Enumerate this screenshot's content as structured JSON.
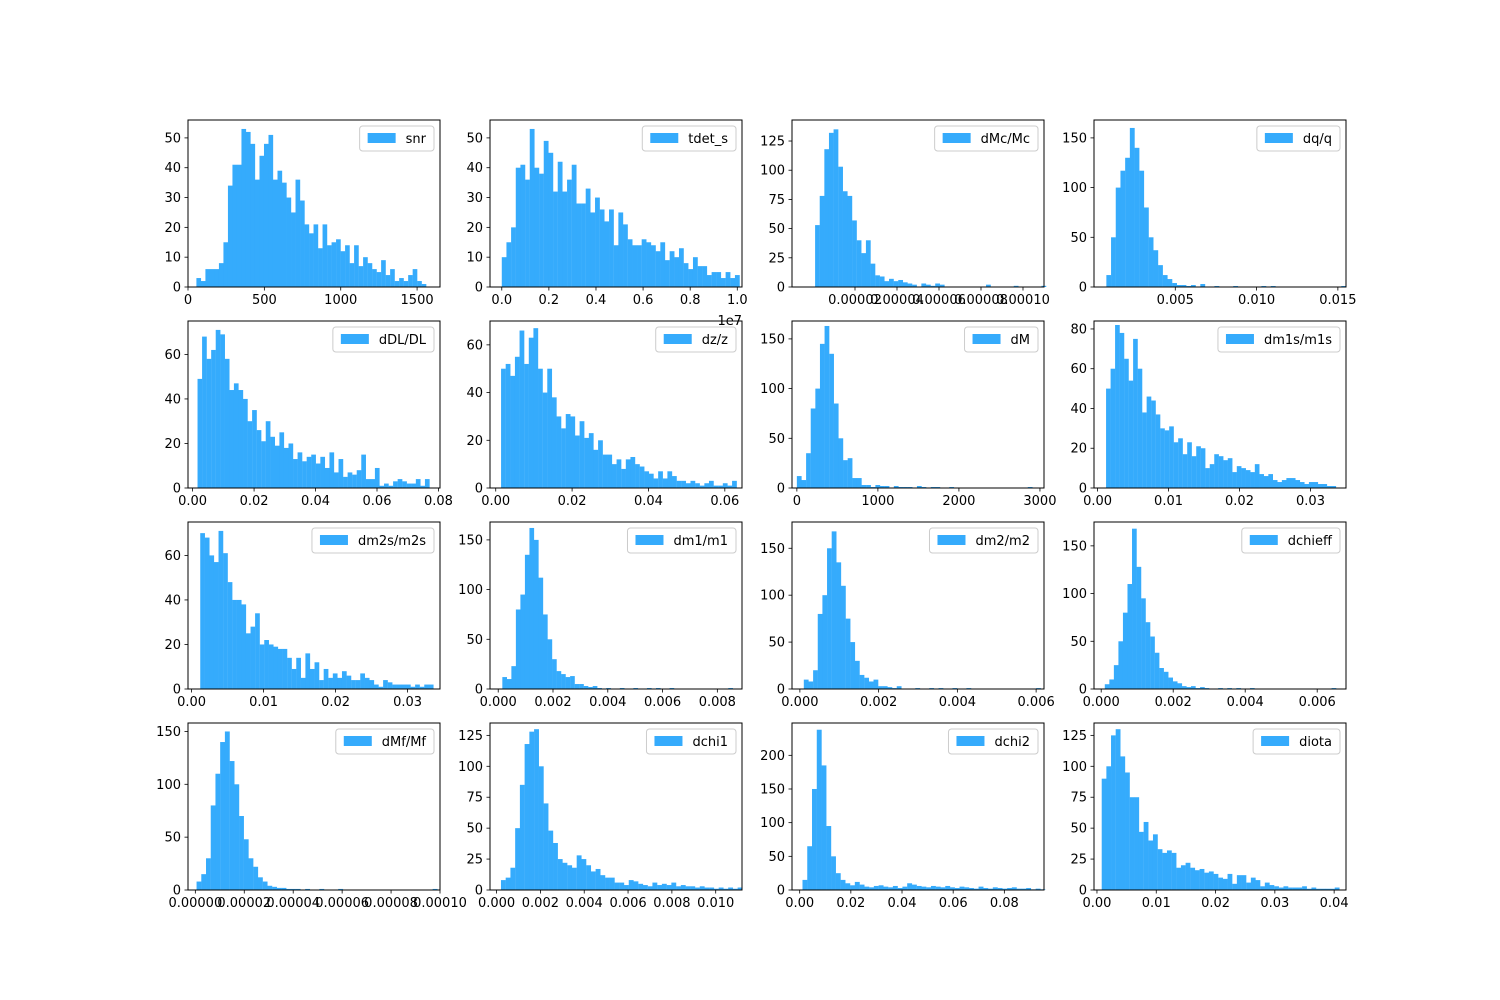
{
  "colors": {
    "bar": "#35abfc",
    "axis": "#000000",
    "background": "#ffffff",
    "legend_edge": "#cccccc"
  },
  "chart_data": [
    {
      "type": "bar",
      "legend": "snr",
      "legend_loc": "upper right",
      "xlim": [
        0,
        1650
      ],
      "ylim": [
        0,
        56
      ],
      "xticks": [
        0,
        500,
        1000,
        1500
      ],
      "xtick_labels": [
        "0",
        "500",
        "1000",
        "1500"
      ],
      "yticks": [
        0,
        10,
        20,
        30,
        40,
        50
      ],
      "ytick_labels": [
        "0",
        "10",
        "20",
        "30",
        "40",
        "50"
      ],
      "x0": 55,
      "bin_width": 29.5,
      "values": [
        3,
        2,
        6,
        6,
        6,
        8,
        15,
        34,
        41,
        41,
        53,
        52,
        48,
        36,
        44,
        48,
        51,
        36,
        39,
        35,
        30,
        25,
        36,
        29,
        21,
        18,
        21,
        13,
        21,
        14,
        15,
        16,
        12,
        14,
        8,
        14,
        7,
        10,
        8,
        6,
        5,
        9,
        4,
        6,
        2,
        3,
        2,
        4,
        6,
        2,
        1
      ]
    },
    {
      "type": "bar",
      "legend": "tdet_s",
      "legend_loc": "upper right",
      "xlim": [
        -0.05,
        1.02
      ],
      "ylim": [
        0,
        56
      ],
      "xticks": [
        0,
        0.2,
        0.4,
        0.6,
        0.8,
        1.0
      ],
      "xtick_labels": [
        "0.0",
        "0.2",
        "0.4",
        "0.6",
        "0.8",
        "1.0"
      ],
      "yticks": [
        0,
        10,
        20,
        30,
        40,
        50
      ],
      "ytick_labels": [
        "0",
        "10",
        "20",
        "30",
        "40",
        "50"
      ],
      "offset_text": "1e7",
      "x0": 0,
      "bin_width": 0.0198,
      "values": [
        10,
        15,
        20,
        40,
        41,
        36,
        53,
        40,
        38,
        49,
        45,
        32,
        42,
        32,
        36,
        41,
        28,
        28,
        33,
        25,
        30,
        26,
        22,
        26,
        14,
        25,
        21,
        16,
        14,
        14,
        16,
        15,
        14,
        12,
        15,
        9,
        12,
        10,
        13,
        8,
        6,
        10,
        7,
        7,
        4,
        5,
        5,
        3,
        5,
        3,
        4
      ]
    },
    {
      "type": "bar",
      "legend": "dMc/Mc",
      "legend_loc": "upper right",
      "xlim": [
        -1e-05,
        0.00011
      ],
      "ylim": [
        0,
        143
      ],
      "xticks": [
        2e-05,
        4e-05,
        6e-05,
        8e-05,
        0.0001
      ],
      "xtick_labels": [
        "0.00002",
        "0.00004",
        "0.00006",
        "0.00008",
        "0.00010"
      ],
      "yticks": [
        0,
        25,
        50,
        75,
        100,
        125
      ],
      "ytick_labels": [
        "0",
        "25",
        "50",
        "75",
        "100",
        "125"
      ],
      "x0": 1e-06,
      "bin_width": 2.2e-06,
      "values": [
        53,
        78,
        118,
        132,
        135,
        103,
        82,
        78,
        57,
        40,
        29,
        40,
        20,
        10,
        9,
        5,
        7,
        5,
        6,
        4,
        3,
        2,
        0,
        3,
        2,
        1,
        3,
        2,
        0,
        0,
        0,
        0,
        0,
        0,
        0,
        0,
        0,
        2,
        0,
        0,
        0,
        0,
        0,
        1,
        0,
        0,
        0,
        0,
        0,
        1
      ]
    },
    {
      "type": "bar",
      "legend": "dq/q",
      "legend_loc": "upper right",
      "xlim": [
        0,
        0.0155
      ],
      "ylim": [
        0,
        168
      ],
      "xticks": [
        0.005,
        0.01,
        0.015
      ],
      "xtick_labels": [
        "0.005",
        "0.010",
        "0.015"
      ],
      "yticks": [
        0,
        50,
        100,
        150
      ],
      "ytick_labels": [
        "0",
        "50",
        "100",
        "150"
      ],
      "x0": 0.00076,
      "bin_width": 0.000289,
      "values": [
        12,
        50,
        100,
        117,
        130,
        160,
        140,
        117,
        80,
        50,
        37,
        22,
        12,
        8,
        4,
        2,
        2,
        1,
        2,
        0,
        3,
        0,
        0,
        1,
        0,
        0,
        0,
        1,
        0,
        0,
        0,
        0,
        0,
        1,
        0,
        1,
        0,
        0,
        0,
        0,
        0,
        0,
        0,
        0,
        0,
        0,
        0,
        0,
        0,
        0,
        1
      ]
    },
    {
      "type": "bar",
      "legend": "dDL/DL",
      "legend_loc": "upper right",
      "xlim": [
        -0.0015,
        0.0805
      ],
      "ylim": [
        0,
        75
      ],
      "xticks": [
        0,
        0.02,
        0.04,
        0.06,
        0.08
      ],
      "xtick_labels": [
        "0.00",
        "0.02",
        "0.04",
        "0.06",
        "0.08"
      ],
      "yticks": [
        0,
        20,
        40,
        60
      ],
      "ytick_labels": [
        "0",
        "20",
        "40",
        "60"
      ],
      "x0": 0.0016,
      "bin_width": 0.00148,
      "values": [
        49,
        68,
        58,
        62,
        71,
        69,
        58,
        44,
        47,
        44,
        40,
        30,
        35,
        26,
        21,
        30,
        23,
        19,
        25,
        18,
        20,
        13,
        16,
        12,
        14,
        15,
        11,
        14,
        9,
        16,
        7,
        13,
        5,
        7,
        6,
        8,
        15,
        4,
        4,
        9,
        1,
        2,
        1,
        3,
        4,
        3,
        2,
        2,
        4,
        1,
        4
      ]
    },
    {
      "type": "bar",
      "legend": "dz/z",
      "legend_loc": "upper right",
      "xlim": [
        -0.0015,
        0.0645
      ],
      "ylim": [
        0,
        70
      ],
      "xticks": [
        0,
        0.02,
        0.04,
        0.06
      ],
      "xtick_labels": [
        "0.00",
        "0.02",
        "0.04",
        "0.06"
      ],
      "yticks": [
        0,
        20,
        40,
        60
      ],
      "ytick_labels": [
        "0",
        "20",
        "40",
        "60"
      ],
      "x0": 0.0014,
      "bin_width": 0.00121,
      "values": [
        50,
        52,
        47,
        55,
        66,
        52,
        63,
        67,
        50,
        40,
        50,
        38,
        30,
        25,
        31,
        30,
        22,
        28,
        21,
        23,
        16,
        20,
        14,
        14,
        10,
        12,
        8,
        12,
        13,
        10,
        9,
        7,
        6,
        4,
        7,
        4,
        7,
        5,
        3,
        3,
        2,
        3,
        2,
        1,
        2,
        3,
        1,
        1,
        2,
        1,
        3
      ]
    },
    {
      "type": "bar",
      "legend": "dM",
      "legend_loc": "upper right",
      "xlim": [
        -60,
        3050
      ],
      "ylim": [
        0,
        168
      ],
      "xticks": [
        0,
        1000,
        2000,
        3000
      ],
      "xtick_labels": [
        "0",
        "1000",
        "2000",
        "3000"
      ],
      "yticks": [
        0,
        50,
        100,
        150
      ],
      "ytick_labels": [
        "0",
        "50",
        "100",
        "150"
      ],
      "x0": 0,
      "bin_width": 57,
      "values": [
        12,
        8,
        35,
        80,
        100,
        145,
        163,
        135,
        85,
        50,
        28,
        30,
        10,
        10,
        3,
        3,
        1,
        3,
        2,
        2,
        0,
        2,
        1,
        1,
        1,
        0,
        2,
        1,
        0,
        1,
        1,
        0,
        0,
        1,
        0,
        0,
        0,
        0,
        0,
        0,
        0,
        0,
        0,
        0,
        0,
        0,
        0,
        0,
        0,
        0,
        1
      ]
    },
    {
      "type": "bar",
      "legend": "dm1s/m1s",
      "legend_loc": "upper right",
      "xlim": [
        -0.0005,
        0.035
      ],
      "ylim": [
        0,
        84
      ],
      "xticks": [
        0,
        0.01,
        0.02,
        0.03
      ],
      "xtick_labels": [
        "0.00",
        "0.01",
        "0.02",
        "0.03"
      ],
      "yticks": [
        0,
        20,
        40,
        60,
        80
      ],
      "ytick_labels": [
        "0",
        "20",
        "40",
        "60",
        "80"
      ],
      "x0": 0.0012,
      "bin_width": 0.000635,
      "values": [
        50,
        60,
        82,
        78,
        65,
        54,
        75,
        60,
        38,
        46,
        44,
        37,
        30,
        29,
        31,
        23,
        25,
        17,
        23,
        16,
        21,
        20,
        10,
        12,
        17,
        16,
        14,
        15,
        8,
        11,
        10,
        9,
        8,
        12,
        7,
        6,
        7,
        4,
        3,
        4,
        5,
        5,
        4,
        3,
        2,
        3,
        3,
        2,
        2,
        1,
        1
      ]
    },
    {
      "type": "bar",
      "legend": "dm2s/m2s",
      "legend_loc": "upper right",
      "xlim": [
        -0.0005,
        0.0345
      ],
      "ylim": [
        0,
        75
      ],
      "xticks": [
        0,
        0.01,
        0.02,
        0.03
      ],
      "xtick_labels": [
        "0.00",
        "0.01",
        "0.02",
        "0.03"
      ],
      "yticks": [
        0,
        20,
        40,
        60
      ],
      "ytick_labels": [
        "0",
        "20",
        "40",
        "60"
      ],
      "x0": 0.0012,
      "bin_width": 0.000635,
      "values": [
        70,
        68,
        60,
        57,
        71,
        61,
        48,
        40,
        40,
        38,
        25,
        28,
        34,
        20,
        22,
        20,
        19,
        18,
        18,
        14,
        9,
        14,
        5,
        16,
        9,
        12,
        4,
        9,
        5,
        7,
        5,
        8,
        6,
        4,
        4,
        7,
        5,
        4,
        2,
        1,
        4,
        3,
        2,
        2,
        2,
        2,
        1,
        2,
        1,
        2,
        2
      ]
    },
    {
      "type": "bar",
      "legend": "dm1/m1",
      "legend_loc": "upper right",
      "xlim": [
        -0.0003,
        0.0089
      ],
      "ylim": [
        0,
        168
      ],
      "xticks": [
        0,
        0.002,
        0.004,
        0.006,
        0.008
      ],
      "xtick_labels": [
        "0.000",
        "0.002",
        "0.004",
        "0.006",
        "0.008"
      ],
      "yticks": [
        0,
        50,
        100,
        150
      ],
      "ytick_labels": [
        "0",
        "50",
        "100",
        "150"
      ],
      "x0": 0.00015,
      "bin_width": 0.000165,
      "values": [
        12,
        10,
        23,
        80,
        95,
        135,
        162,
        150,
        112,
        75,
        50,
        30,
        18,
        15,
        12,
        13,
        5,
        5,
        3,
        2,
        3,
        1,
        0,
        1,
        0,
        0,
        1,
        0,
        0,
        1,
        0,
        0,
        1,
        0,
        1,
        0,
        0,
        1,
        0,
        0,
        0,
        0,
        0,
        0,
        0,
        0,
        0,
        0,
        0,
        0,
        1
      ]
    },
    {
      "type": "bar",
      "legend": "dm2/m2",
      "legend_loc": "upper right",
      "xlim": [
        -0.0002,
        0.0062
      ],
      "ylim": [
        0,
        178
      ],
      "xticks": [
        0,
        0.002,
        0.004,
        0.006
      ],
      "xtick_labels": [
        "0.000",
        "0.002",
        "0.004",
        "0.006"
      ],
      "yticks": [
        0,
        50,
        100,
        150
      ],
      "ytick_labels": [
        "0",
        "50",
        "100",
        "150"
      ],
      "x0": 0.0001,
      "bin_width": 0.000118,
      "values": [
        10,
        8,
        20,
        80,
        100,
        150,
        168,
        135,
        110,
        75,
        50,
        30,
        15,
        12,
        8,
        10,
        3,
        3,
        2,
        1,
        3,
        0,
        0,
        0,
        1,
        0,
        0,
        1,
        0,
        1,
        0,
        0,
        1,
        0,
        0,
        1,
        0,
        0,
        0,
        0,
        0,
        0,
        0,
        0,
        0,
        0,
        0,
        0,
        0,
        0,
        1
      ]
    },
    {
      "type": "bar",
      "legend": "dchieff",
      "legend_loc": "upper right",
      "xlim": [
        -0.0002,
        0.0068
      ],
      "ylim": [
        0,
        175
      ],
      "xticks": [
        0,
        0.002,
        0.004,
        0.006
      ],
      "xtick_labels": [
        "0.000",
        "0.002",
        "0.004",
        "0.006"
      ],
      "yticks": [
        0,
        50,
        100,
        150
      ],
      "ytick_labels": [
        "0",
        "50",
        "100",
        "150"
      ],
      "x0": 0.0001,
      "bin_width": 0.000126,
      "values": [
        5,
        10,
        25,
        50,
        80,
        110,
        168,
        128,
        95,
        70,
        55,
        38,
        22,
        18,
        12,
        8,
        6,
        3,
        2,
        3,
        1,
        2,
        1,
        0,
        0,
        1,
        0,
        1,
        0,
        1,
        0,
        0,
        1,
        0,
        0,
        0,
        0,
        0,
        0,
        0,
        0,
        0,
        0,
        0,
        0,
        0,
        0,
        0,
        0,
        0,
        1
      ]
    },
    {
      "type": "bar",
      "legend": "dMf/Mf",
      "legend_loc": "upper right",
      "xlim": [
        -3e-06,
        0.0001
      ],
      "ylim": [
        0,
        158
      ],
      "xticks": [
        0,
        2e-05,
        4e-05,
        6e-05,
        8e-05,
        0.0001
      ],
      "xtick_labels": [
        "0.00000",
        "0.00002",
        "0.00004",
        "0.00006",
        "0.00008",
        "0.00010"
      ],
      "yticks": [
        0,
        50,
        100,
        150
      ],
      "ytick_labels": [
        "0",
        "50",
        "100",
        "150"
      ],
      "x0": 5e-07,
      "bin_width": 1.93e-06,
      "values": [
        8,
        15,
        30,
        80,
        110,
        140,
        150,
        122,
        100,
        70,
        48,
        30,
        22,
        12,
        8,
        4,
        3,
        2,
        2,
        1,
        1,
        1,
        0,
        1,
        0,
        0,
        1,
        0,
        0,
        0,
        1,
        0,
        0,
        0,
        0,
        0,
        0,
        0,
        0,
        0,
        0,
        0,
        0,
        0,
        0,
        0,
        0,
        0,
        0,
        0,
        1
      ]
    },
    {
      "type": "bar",
      "legend": "dchi1",
      "legend_loc": "upper right",
      "xlim": [
        -0.0003,
        0.0112
      ],
      "ylim": [
        0,
        135
      ],
      "xticks": [
        0,
        0.002,
        0.004,
        0.006,
        0.008,
        0.01
      ],
      "xtick_labels": [
        "0.000",
        "0.002",
        "0.004",
        "0.006",
        "0.008",
        "0.010"
      ],
      "yticks": [
        0,
        25,
        50,
        75,
        100,
        125
      ],
      "ytick_labels": [
        "0",
        "25",
        "50",
        "75",
        "100",
        "125"
      ],
      "x0": 0.0002,
      "bin_width": 0.000216,
      "values": [
        8,
        10,
        18,
        50,
        85,
        118,
        128,
        130,
        100,
        70,
        48,
        38,
        25,
        22,
        20,
        18,
        28,
        25,
        20,
        15,
        17,
        12,
        10,
        10,
        6,
        6,
        4,
        8,
        7,
        5,
        4,
        3,
        6,
        4,
        5,
        4,
        6,
        3,
        4,
        3,
        3,
        2,
        3,
        2,
        2,
        1,
        2,
        1,
        2,
        1,
        2
      ]
    },
    {
      "type": "bar",
      "legend": "dchi2",
      "legend_loc": "upper right",
      "xlim": [
        -0.003,
        0.0955
      ],
      "ylim": [
        0,
        248
      ],
      "xticks": [
        0,
        0.02,
        0.04,
        0.06,
        0.08
      ],
      "xtick_labels": [
        "0.00",
        "0.02",
        "0.04",
        "0.06",
        "0.08"
      ],
      "yticks": [
        0,
        50,
        100,
        150,
        200
      ],
      "ytick_labels": [
        "0",
        "50",
        "100",
        "150",
        "200"
      ],
      "x0": 0.0011,
      "bin_width": 0.00186,
      "values": [
        15,
        65,
        150,
        238,
        185,
        95,
        50,
        25,
        15,
        10,
        7,
        12,
        8,
        5,
        4,
        6,
        7,
        5,
        4,
        6,
        3,
        5,
        10,
        8,
        6,
        5,
        4,
        6,
        5,
        4,
        6,
        4,
        3,
        5,
        4,
        3,
        2,
        5,
        3,
        2,
        4,
        3,
        2,
        3,
        4,
        2,
        2,
        3,
        1,
        2,
        1
      ]
    },
    {
      "type": "bar",
      "legend": "diota",
      "legend_loc": "upper right",
      "xlim": [
        -0.0005,
        0.042
      ],
      "ylim": [
        0,
        135
      ],
      "xticks": [
        0,
        0.01,
        0.02,
        0.03,
        0.04
      ],
      "xtick_labels": [
        "0.00",
        "0.01",
        "0.02",
        "0.03",
        "0.04"
      ],
      "yticks": [
        0,
        25,
        50,
        75,
        100,
        125
      ],
      "ytick_labels": [
        "0",
        "25",
        "50",
        "75",
        "100",
        "125"
      ],
      "x0": 0.0008,
      "bin_width": 0.000786,
      "values": [
        90,
        100,
        125,
        130,
        108,
        95,
        75,
        75,
        47,
        55,
        40,
        45,
        33,
        30,
        32,
        30,
        18,
        20,
        22,
        18,
        16,
        17,
        14,
        15,
        13,
        10,
        9,
        13,
        5,
        12,
        12,
        6,
        10,
        8,
        3,
        6,
        4,
        3,
        2,
        3,
        2,
        2,
        2,
        3,
        1,
        2,
        1,
        1,
        1,
        1,
        2
      ]
    }
  ]
}
